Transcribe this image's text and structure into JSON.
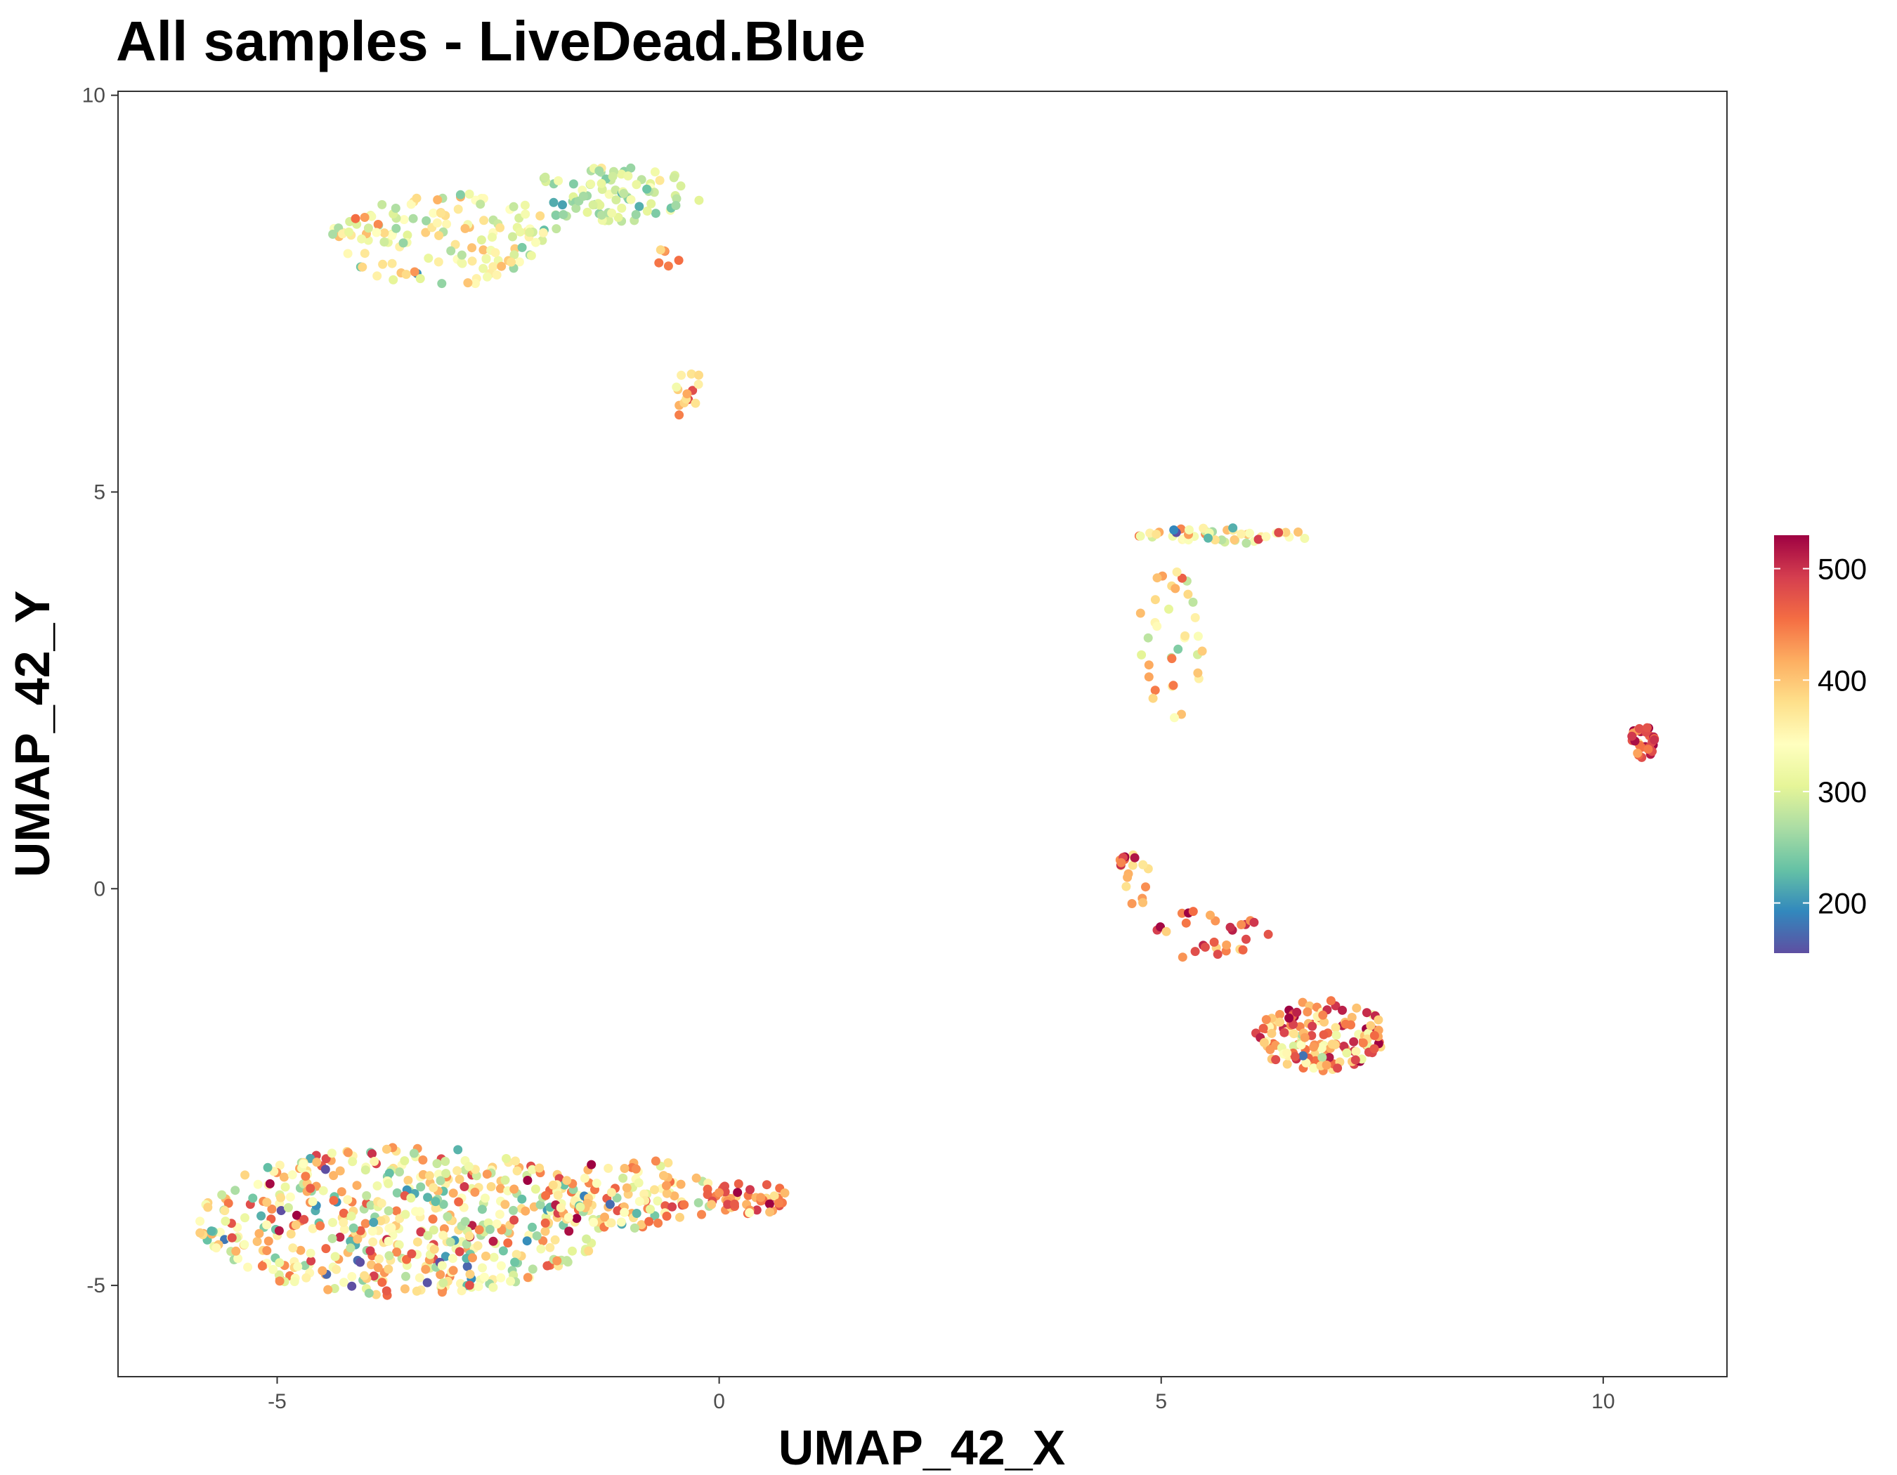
{
  "chart_data": {
    "type": "scatter",
    "title": "All samples - LiveDead.Blue",
    "xlabel": "UMAP_42_X",
    "ylabel": "UMAP_42_Y",
    "xlim": [
      -6.8,
      11.4
    ],
    "ylim": [
      -6.15,
      10.05
    ],
    "x_ticks": [
      -5,
      0,
      5,
      10
    ],
    "y_ticks": [
      -5,
      0,
      5,
      10
    ],
    "x_tick_labels": [
      "-5",
      "0",
      "5",
      "10"
    ],
    "y_tick_labels": [
      "-5",
      "0",
      "5",
      "10"
    ],
    "grid": false,
    "legend_position": "right",
    "colorbar": {
      "min": 155,
      "max": 530,
      "ticks": [
        200,
        300,
        400,
        500
      ],
      "tick_labels": [
        "200",
        "300",
        "400",
        "500"
      ],
      "palette": "Spectral",
      "colors": [
        "#5e4fa2",
        "#3288bd",
        "#66c2a5",
        "#abdda4",
        "#e6f598",
        "#ffffbf",
        "#fee08b",
        "#fdae61",
        "#f46d43",
        "#d53e4f",
        "#9e0142"
      ]
    },
    "clusters": [
      {
        "cx": -3.1,
        "cy": 8.2,
        "rx": 1.3,
        "ry": 0.6,
        "n": 140,
        "vmean": 330,
        "vsd": 50
      },
      {
        "cx": -1.2,
        "cy": 8.75,
        "rx": 1.0,
        "ry": 0.35,
        "n": 85,
        "vmean": 290,
        "vsd": 35
      },
      {
        "cx": -0.6,
        "cy": 7.95,
        "rx": 0.15,
        "ry": 0.12,
        "n": 6,
        "vmean": 420,
        "vsd": 40
      },
      {
        "cx": -0.35,
        "cy": 6.25,
        "rx": 0.15,
        "ry": 0.4,
        "n": 14,
        "vmean": 410,
        "vsd": 40
      },
      {
        "cx": 5.7,
        "cy": 4.45,
        "rx": 1.0,
        "ry": 0.1,
        "n": 45,
        "vmean": 350,
        "vsd": 60
      },
      {
        "cx": 5.1,
        "cy": 3.1,
        "rx": 0.4,
        "ry": 1.0,
        "n": 35,
        "vmean": 360,
        "vsd": 45
      },
      {
        "cx": 10.45,
        "cy": 1.85,
        "rx": 0.15,
        "ry": 0.2,
        "n": 30,
        "vmean": 480,
        "vsd": 50
      },
      {
        "cx": 4.7,
        "cy": 0.15,
        "rx": 0.25,
        "ry": 0.35,
        "n": 20,
        "vmean": 420,
        "vsd": 80
      },
      {
        "cx": 5.6,
        "cy": -0.6,
        "rx": 0.7,
        "ry": 0.35,
        "n": 28,
        "vmean": 450,
        "vsd": 40
      },
      {
        "cx": 6.8,
        "cy": -1.85,
        "rx": 0.75,
        "ry": 0.45,
        "n": 150,
        "vmean": 420,
        "vsd": 60
      },
      {
        "cx": -3.6,
        "cy": -4.2,
        "rx": 2.3,
        "ry": 0.95,
        "n": 520,
        "vmean": 350,
        "vsd": 80
      },
      {
        "cx": -1.0,
        "cy": -3.85,
        "rx": 1.0,
        "ry": 0.45,
        "n": 110,
        "vmean": 380,
        "vsd": 70
      },
      {
        "cx": 0.35,
        "cy": -3.9,
        "rx": 0.5,
        "ry": 0.2,
        "n": 45,
        "vmean": 440,
        "vsd": 40
      }
    ]
  }
}
